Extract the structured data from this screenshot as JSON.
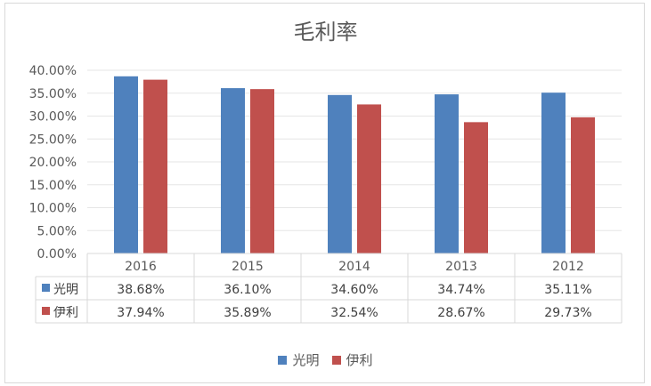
{
  "chart_data": {
    "type": "bar",
    "title": "毛利率",
    "categories": [
      "2016",
      "2015",
      "2014",
      "2013",
      "2012"
    ],
    "series": [
      {
        "name": "光明",
        "color": "#4f81bd",
        "values": [
          38.68,
          36.1,
          34.6,
          34.74,
          35.11
        ],
        "labels": [
          "38.68%",
          "36.10%",
          "34.60%",
          "34.74%",
          "35.11%"
        ]
      },
      {
        "name": "伊利",
        "color": "#c0504d",
        "values": [
          37.94,
          35.89,
          32.54,
          28.67,
          29.73
        ],
        "labels": [
          "37.94%",
          "35.89%",
          "32.54%",
          "28.67%",
          "29.73%"
        ]
      }
    ],
    "ylim": [
      0,
      40
    ],
    "yticks": [
      {
        "value": 0,
        "label": "0.00%"
      },
      {
        "value": 5,
        "label": "5.00%"
      },
      {
        "value": 10,
        "label": "10.00%"
      },
      {
        "value": 15,
        "label": "15.00%"
      },
      {
        "value": 20,
        "label": "20.00%"
      },
      {
        "value": 25,
        "label": "25.00%"
      },
      {
        "value": 30,
        "label": "30.00%"
      },
      {
        "value": 35,
        "label": "35.00%"
      },
      {
        "value": 40,
        "label": "40.00%"
      }
    ],
    "grid": true,
    "data_table": true,
    "legend_position": "bottom"
  }
}
